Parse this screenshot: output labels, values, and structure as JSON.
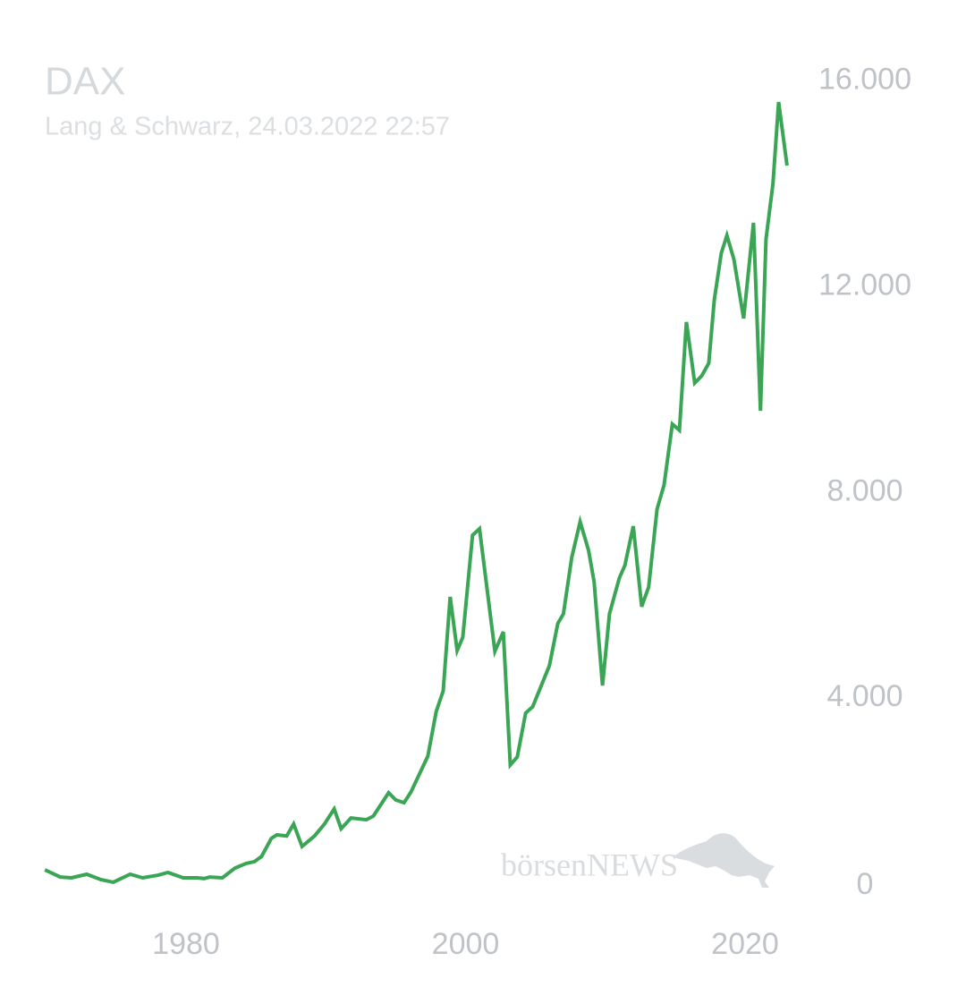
{
  "chart_data": {
    "type": "line",
    "title": "DAX",
    "subtitle": "Lang & Schwarz, 24.03.2022 22:57",
    "watermark": "börsenNEWS",
    "color": "#3aa655",
    "x": [
      1969.9,
      1971.0,
      1971.8,
      1972.9,
      1973.9,
      1974.8,
      1976.0,
      1976.9,
      1978.0,
      1978.7,
      1979.8,
      1980.8,
      1981.3,
      1981.7,
      1982.6,
      1983.5,
      1984.3,
      1984.9,
      1985.4,
      1986.1,
      1986.5,
      1987.2,
      1987.7,
      1988.3,
      1989.2,
      1989.9,
      1990.6,
      1991.1,
      1991.8,
      1992.9,
      1993.4,
      1994.5,
      1995.0,
      1995.6,
      1996.1,
      1997.3,
      1997.9,
      1998.4,
      1998.9,
      1999.4,
      1999.8,
      2000.5,
      2001.0,
      2002.1,
      2002.7,
      2003.2,
      2003.7,
      2004.3,
      2004.8,
      2006.0,
      2006.6,
      2007.0,
      2007.6,
      2008.2,
      2008.8,
      2009.2,
      2009.8,
      2010.3,
      2011.0,
      2011.4,
      2012.0,
      2012.6,
      2013.1,
      2013.7,
      2014.2,
      2014.8,
      2015.3,
      2015.8,
      2016.4,
      2016.9,
      2017.4,
      2017.8,
      2018.3,
      2018.7,
      2019.2,
      2019.9,
      2020.6,
      2021.1,
      2021.5,
      2022.0,
      2022.4,
      2023.0
    ],
    "values": [
      660,
      520,
      505,
      575,
      470,
      420,
      575,
      505,
      555,
      610,
      505,
      505,
      490,
      520,
      505,
      695,
      785,
      820,
      920,
      1270,
      1340,
      1320,
      1550,
      1115,
      1320,
      1550,
      1845,
      1460,
      1670,
      1635,
      1705,
      2160,
      2020,
      1965,
      2175,
      2870,
      3740,
      4140,
      5970,
      4925,
      5185,
      7170,
      7295,
      4910,
      5290,
      2700,
      2855,
      3710,
      3830,
      4630,
      5450,
      5640,
      6735,
      7430,
      6875,
      6265,
      4245,
      5640,
      6335,
      6580,
      7345,
      5780,
      6160,
      7675,
      8145,
      9330,
      9210,
      11315,
      10130,
      10270,
      10515,
      11750,
      12655,
      13000,
      12535,
      11385,
      13245,
      9590,
      12930,
      14010,
      15595,
      14360
    ],
    "xlim": [
      1969,
      2024
    ],
    "xticks": [
      1980,
      2000,
      2020
    ],
    "ylim": [
      0,
      16500
    ],
    "yticks": [
      0,
      {
        "value": 4000,
        "label": "4.000"
      },
      {
        "value": 8000,
        "label": "8.000"
      },
      {
        "value": 12000,
        "label": "12.000"
      },
      {
        "value": 16000,
        "label": "16.000"
      }
    ],
    "grid": false
  }
}
